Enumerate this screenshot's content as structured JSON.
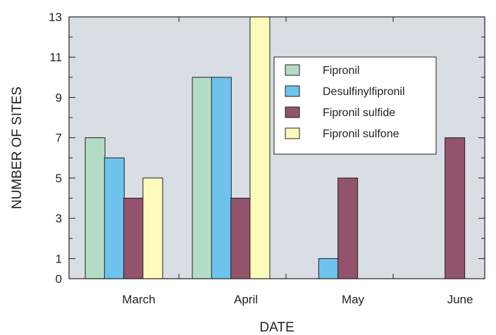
{
  "chart_data": {
    "type": "bar",
    "xlabel": "DATE",
    "ylabel": "NUMBER OF SITES",
    "categories": [
      "March",
      "April",
      "May",
      "June"
    ],
    "series": [
      {
        "name": "Fipronil",
        "color": "#b3dcc5",
        "values": [
          7,
          10,
          0,
          0
        ]
      },
      {
        "name": "Desulfinylfipronil",
        "color": "#6dc3ee",
        "values": [
          6,
          10,
          1,
          0
        ]
      },
      {
        "name": "Fipronil sulfide",
        "color": "#93536d",
        "values": [
          4,
          4,
          5,
          7
        ]
      },
      {
        "name": "Fipronil sulfone",
        "color": "#fdfbbb",
        "values": [
          5,
          13,
          0,
          0
        ]
      }
    ],
    "ylim": [
      0,
      13
    ],
    "yticks_labeled": [
      0,
      1,
      3,
      5,
      7,
      9,
      11,
      13
    ],
    "yticks_minor": [
      2,
      4,
      6,
      8,
      10,
      12
    ],
    "grid": false,
    "plot_background": "#d9dde4",
    "legend": "upper-right-center"
  }
}
